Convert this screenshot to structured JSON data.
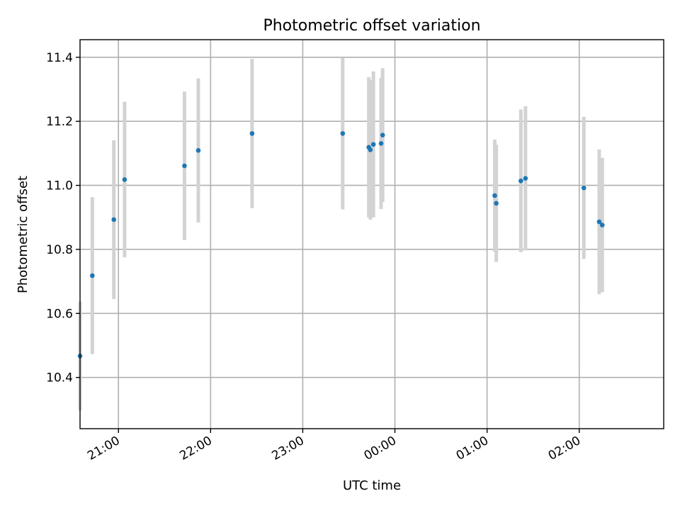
{
  "chart_data": {
    "type": "scatter",
    "title": "Photometric offset variation",
    "xlabel": "UTC time",
    "ylabel": "Photometric offset",
    "x_ticks": [
      "21:00",
      "22:00",
      "23:00",
      "00:00",
      "01:00",
      "02:00"
    ],
    "y_ticks": [
      "10.4",
      "10.6",
      "10.8",
      "11.0",
      "11.2",
      "11.4"
    ],
    "xlim": [
      "20:35",
      "02:55"
    ],
    "ylim": [
      10.24,
      11.455
    ],
    "grid": true,
    "marker_color": "#1f77b4",
    "errorbar_color": "#d3d3d3",
    "points": [
      {
        "t": "20:35",
        "y": 10.467,
        "err": 0.17
      },
      {
        "t": "20:43",
        "y": 10.718,
        "err": 0.245
      },
      {
        "t": "20:57",
        "y": 10.893,
        "err": 0.248
      },
      {
        "t": "21:04",
        "y": 11.018,
        "err": 0.243
      },
      {
        "t": "21:43",
        "y": 11.061,
        "err": 0.232
      },
      {
        "t": "21:52",
        "y": 11.109,
        "err": 0.225
      },
      {
        "t": "22:27",
        "y": 11.162,
        "err": 0.233
      },
      {
        "t": "23:26",
        "y": 11.162,
        "err": 0.237
      },
      {
        "t": "23:43",
        "y": 11.119,
        "err": 0.219
      },
      {
        "t": "23:44",
        "y": 11.111,
        "err": 0.218
      },
      {
        "t": "23:46",
        "y": 11.128,
        "err": 0.228
      },
      {
        "t": "23:51",
        "y": 11.131,
        "err": 0.205
      },
      {
        "t": "23:52",
        "y": 11.157,
        "err": 0.209
      },
      {
        "t": "01:05",
        "y": 10.968,
        "err": 0.175
      },
      {
        "t": "01:06",
        "y": 10.944,
        "err": 0.183
      },
      {
        "t": "01:22",
        "y": 11.014,
        "err": 0.223
      },
      {
        "t": "01:25",
        "y": 11.022,
        "err": 0.225
      },
      {
        "t": "02:03",
        "y": 10.992,
        "err": 0.222
      },
      {
        "t": "02:13",
        "y": 10.886,
        "err": 0.226
      },
      {
        "t": "02:15",
        "y": 10.876,
        "err": 0.21
      }
    ]
  }
}
